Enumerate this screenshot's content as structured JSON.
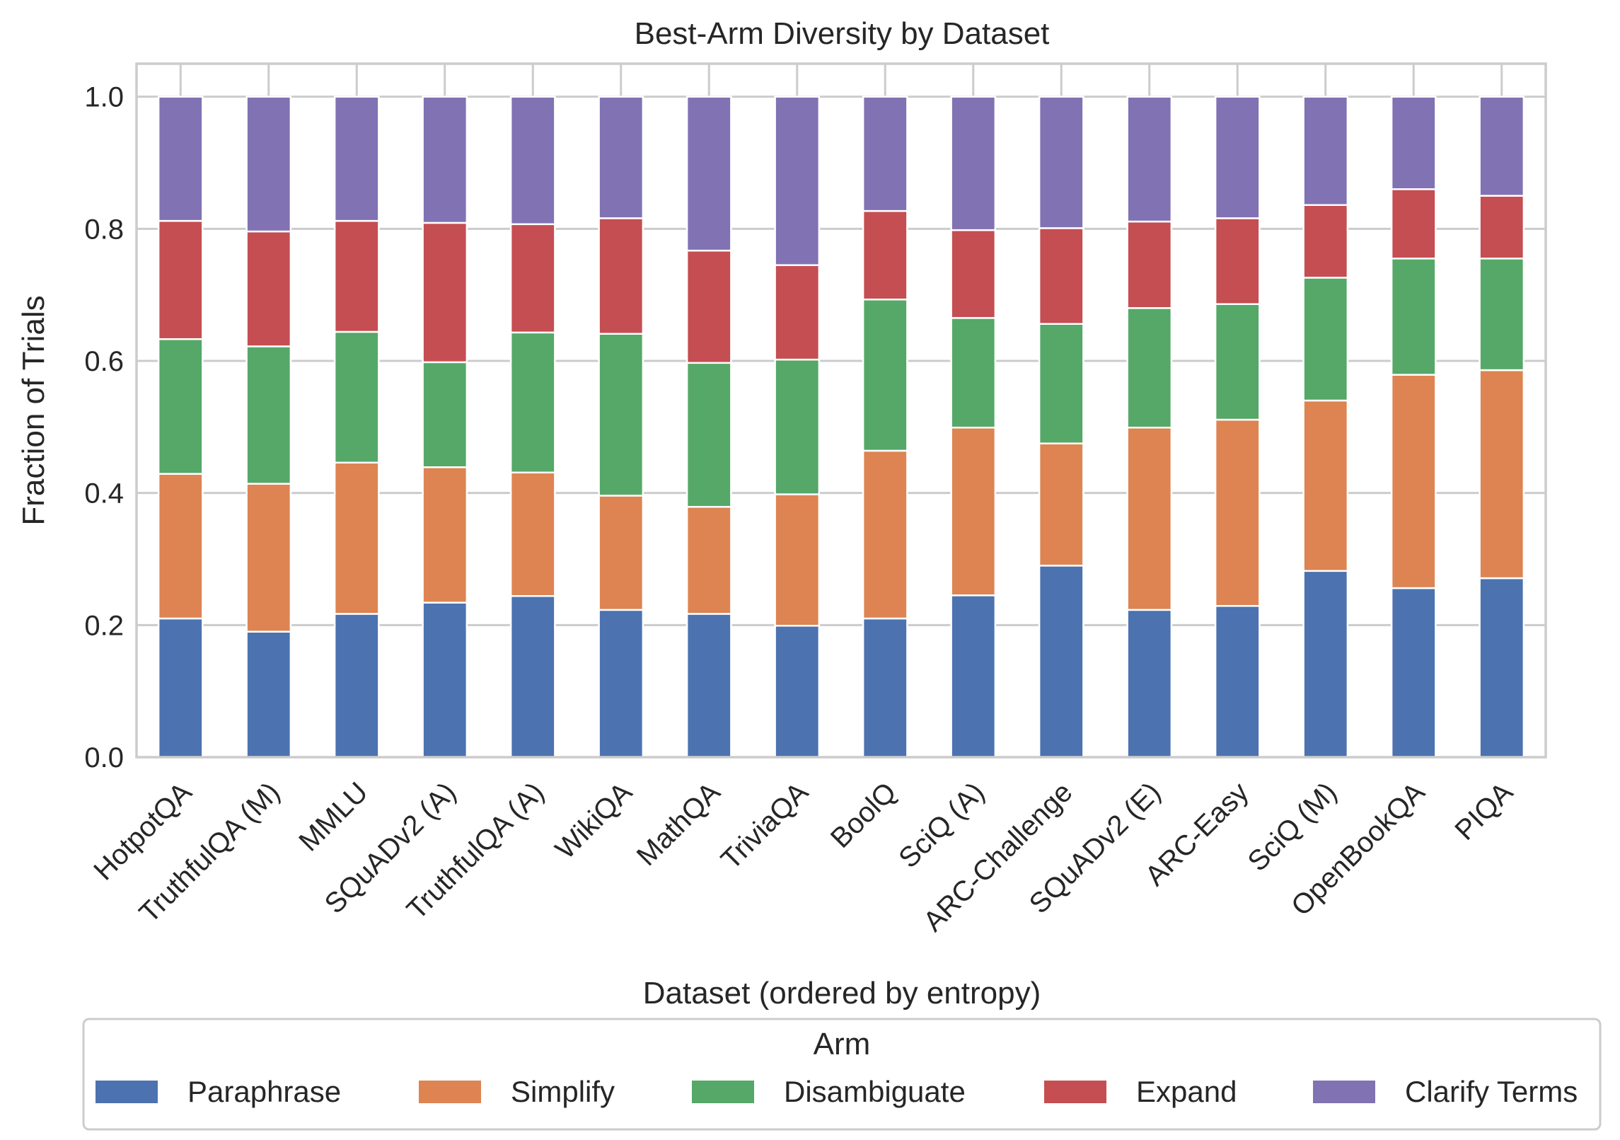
{
  "chart_data": {
    "type": "bar",
    "stacked": true,
    "title": "Best-Arm Diversity by Dataset",
    "xlabel": "Dataset (ordered by entropy)",
    "ylabel": "Fraction of Trials",
    "ylim": [
      0,
      1.05
    ],
    "yticks": [
      0.0,
      0.2,
      0.4,
      0.6,
      0.8,
      1.0
    ],
    "ytick_labels": [
      "0.0",
      "0.2",
      "0.4",
      "0.6",
      "0.8",
      "1.0"
    ],
    "grid": true,
    "categories": [
      "HotpotQA",
      "TruthfulQA (M)",
      "MMLU",
      "SQuADv2 (A)",
      "TruthfulQA (A)",
      "WikiQA",
      "MathQA",
      "TriviaQA",
      "BoolQ",
      "SciQ (A)",
      "ARC-Challenge",
      "SQuADv2 (E)",
      "ARC-Easy",
      "SciQ (M)",
      "OpenBookQA",
      "PIQA"
    ],
    "series": [
      {
        "name": "Paraphrase",
        "color": "#4c72b0",
        "values": [
          0.21,
          0.19,
          0.217,
          0.234,
          0.244,
          0.223,
          0.217,
          0.199,
          0.21,
          0.245,
          0.29,
          0.223,
          0.229,
          0.282,
          0.256,
          0.271
        ]
      },
      {
        "name": "Simplify",
        "color": "#dd8452",
        "values": [
          0.219,
          0.224,
          0.229,
          0.205,
          0.187,
          0.173,
          0.162,
          0.199,
          0.254,
          0.254,
          0.185,
          0.276,
          0.282,
          0.258,
          0.323,
          0.315
        ]
      },
      {
        "name": "Disambiguate",
        "color": "#55a868",
        "values": [
          0.204,
          0.208,
          0.198,
          0.159,
          0.212,
          0.245,
          0.218,
          0.204,
          0.229,
          0.166,
          0.181,
          0.181,
          0.175,
          0.186,
          0.176,
          0.169
        ]
      },
      {
        "name": "Expand",
        "color": "#c44e52",
        "values": [
          0.179,
          0.174,
          0.168,
          0.211,
          0.164,
          0.175,
          0.17,
          0.143,
          0.134,
          0.133,
          0.145,
          0.131,
          0.13,
          0.11,
          0.105,
          0.095
        ]
      },
      {
        "name": "Clarify Terms",
        "color": "#8172b3",
        "values": [
          0.188,
          0.204,
          0.188,
          0.191,
          0.193,
          0.184,
          0.233,
          0.255,
          0.173,
          0.202,
          0.199,
          0.189,
          0.184,
          0.164,
          0.14,
          0.15
        ]
      }
    ],
    "legend": {
      "title": "Arm",
      "placement": "bottom-center"
    }
  }
}
